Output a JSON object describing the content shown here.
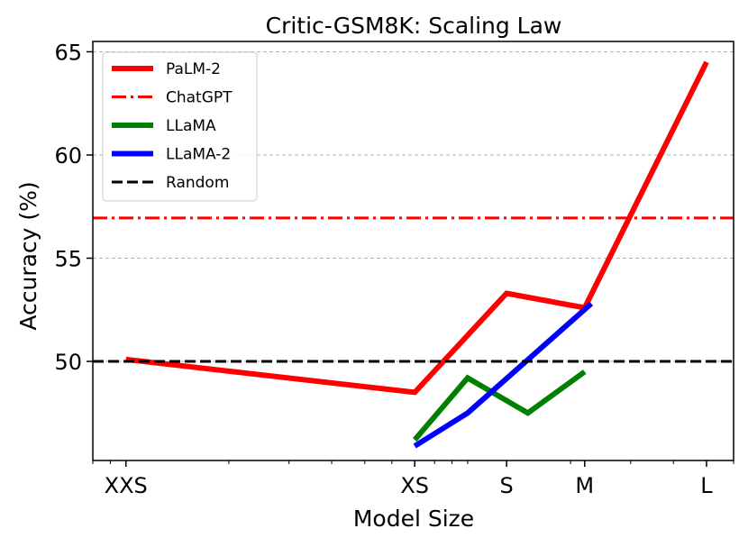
{
  "chart_data": {
    "type": "line",
    "title": "Critic-GSM8K: Scaling Law",
    "xlabel": "Model Size",
    "ylabel": "Accuracy (%)",
    "x_scale": "log",
    "x_ticks": [
      {
        "label": "XXS",
        "value": 1
      },
      {
        "label": "XS",
        "value": 7
      },
      {
        "label": "S",
        "value": 13
      },
      {
        "label": "M",
        "value": 22
      },
      {
        "label": "L",
        "value": 50
      }
    ],
    "xlim": [
      0.8,
      60
    ],
    "ylim": [
      45.2,
      65.5
    ],
    "y_ticks": [
      50,
      55,
      60,
      65
    ],
    "grid": "y-axis dashed",
    "legend": "top-left",
    "series": [
      {
        "name": "PaLM-2",
        "color": "#ff0000",
        "style": "solid",
        "width": 6,
        "x": [
          1,
          7,
          13,
          22,
          50
        ],
        "y": [
          50.1,
          48.5,
          53.3,
          52.6,
          64.5
        ]
      },
      {
        "name": "ChatGPT",
        "color": "#ff0000",
        "style": "dashdot",
        "width": 3,
        "hline": 56.95
      },
      {
        "name": "LLaMA",
        "color": "#008000",
        "style": "solid",
        "width": 6,
        "x": [
          7,
          10,
          15,
          22
        ],
        "y": [
          46.2,
          49.2,
          47.5,
          49.5
        ]
      },
      {
        "name": "LLaMA-2",
        "color": "#0000ff",
        "style": "solid",
        "width": 6,
        "x": [
          7,
          10,
          23
        ],
        "y": [
          45.9,
          47.5,
          52.8
        ]
      },
      {
        "name": "Random",
        "color": "#000000",
        "style": "dashed",
        "width": 3,
        "hline": 50.0
      }
    ]
  }
}
